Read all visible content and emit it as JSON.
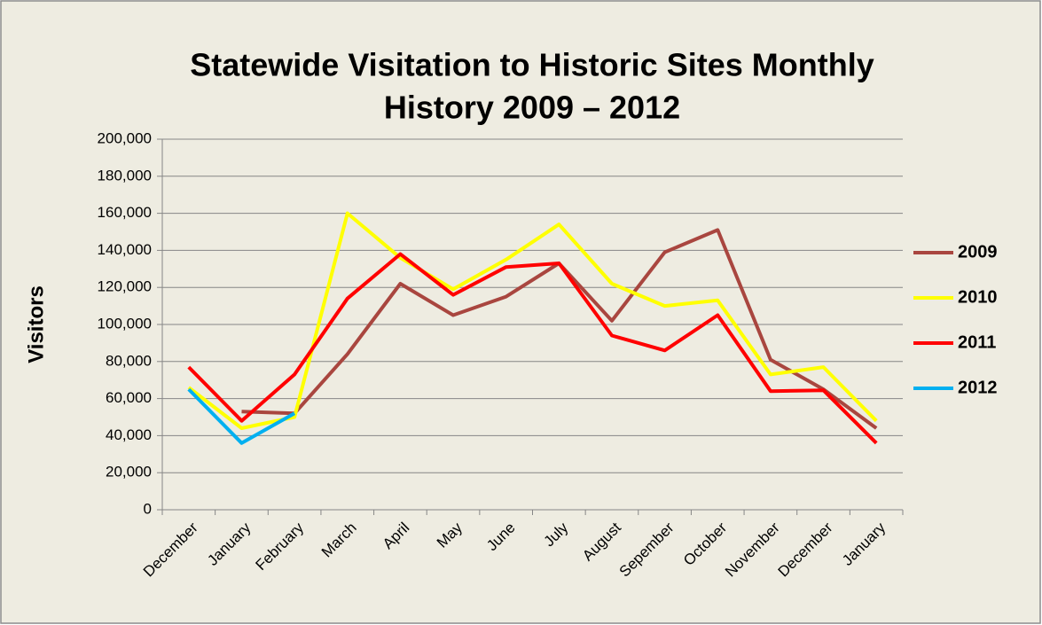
{
  "chart_data": {
    "type": "line",
    "title": [
      "Statewide Visitation to Historic Sites Monthly",
      "History 2009 – 2012"
    ],
    "y_label": "Visitors",
    "categories": [
      "December",
      "January",
      "February",
      "March",
      "April",
      "May",
      "June",
      "July",
      "August",
      "Sepember",
      "October",
      "November",
      "December",
      "January"
    ],
    "series": [
      {
        "name": "2009",
        "color": "#a9463f",
        "values": [
          null,
          53000,
          52000,
          84000,
          122000,
          105000,
          115000,
          133000,
          102000,
          139000,
          151000,
          81000,
          65000,
          44000
        ]
      },
      {
        "name": "2010",
        "color": "#ffff00",
        "values": [
          66000,
          44000,
          50000,
          160000,
          136000,
          119000,
          135000,
          154000,
          122000,
          110000,
          113000,
          73000,
          77000,
          48000
        ]
      },
      {
        "name": "2011",
        "color": "#ff0000",
        "values": [
          77000,
          48000,
          73000,
          114000,
          138000,
          116000,
          131000,
          133000,
          94000,
          86000,
          105000,
          64000,
          64500,
          36000
        ]
      },
      {
        "name": "2012",
        "color": "#00b0f0",
        "values": [
          65000,
          36000,
          52000,
          null,
          null,
          null,
          null,
          null,
          null,
          null,
          null,
          null,
          null,
          null
        ]
      }
    ],
    "ylim": [
      0,
      200000
    ],
    "yticks": [
      0,
      {
        "value": 20000,
        "label": "20,000"
      },
      {
        "value": 40000,
        "label": "40,000"
      },
      {
        "value": 60000,
        "label": "60,000"
      },
      {
        "value": 80000,
        "label": "80,000"
      },
      {
        "value": 100000,
        "label": "100,000"
      },
      {
        "value": 120000,
        "label": "120,000"
      },
      {
        "value": 140000,
        "label": "140,000"
      },
      {
        "value": 160000,
        "label": "160,000"
      },
      {
        "value": 180000,
        "label": "180,000"
      },
      {
        "value": 200000,
        "label": "200,000"
      }
    ],
    "grid": true,
    "legend": "right"
  }
}
